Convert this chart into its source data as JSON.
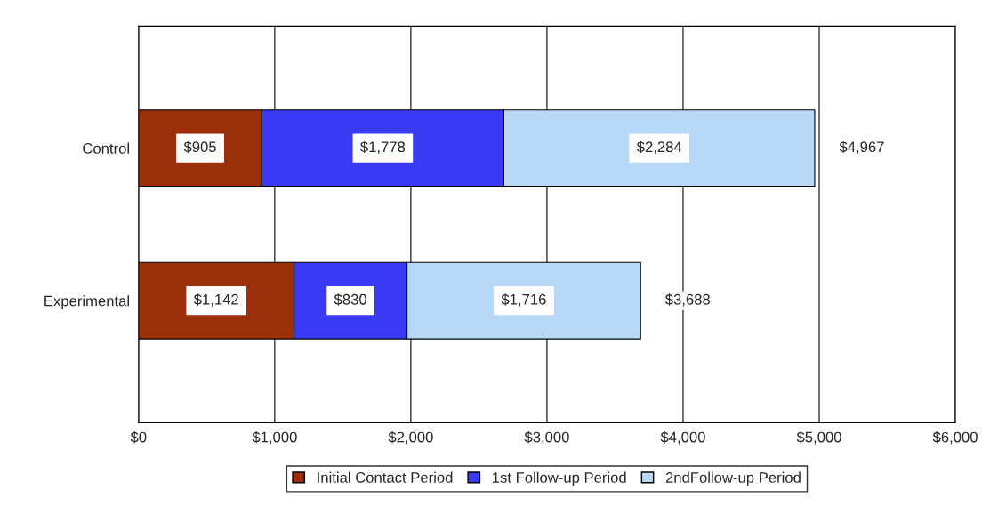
{
  "chart_data": {
    "type": "bar",
    "orientation": "horizontal",
    "stacked": true,
    "categories": [
      "Control",
      "Experimental"
    ],
    "series": [
      {
        "name": "Initial Contact Period",
        "color": "#9a2f0a",
        "values": [
          905,
          1142
        ],
        "value_labels": [
          "$905",
          "$1,142"
        ]
      },
      {
        "name": "1st Follow-up Period",
        "color": "#3a3af5",
        "values": [
          1778,
          830
        ],
        "value_labels": [
          "$1,778",
          "$830"
        ]
      },
      {
        "name": "2ndFollow-up Period",
        "color": "#b8d8f8",
        "values": [
          2284,
          1716
        ],
        "value_labels": [
          "$2,284",
          "$1,716"
        ]
      }
    ],
    "totals": [
      "$4,967",
      "$3,688"
    ],
    "xlim": [
      0,
      6000
    ],
    "xticks": [
      {
        "value": 0,
        "label": "$0"
      },
      {
        "value": 1000,
        "label": "$1,000"
      },
      {
        "value": 2000,
        "label": "$2,000"
      },
      {
        "value": 3000,
        "label": "$3,000"
      },
      {
        "value": 4000,
        "label": "$4,000"
      },
      {
        "value": 5000,
        "label": "$5,000"
      },
      {
        "value": 6000,
        "label": "$6,000"
      }
    ],
    "grid": "x",
    "legend": "bottom"
  }
}
